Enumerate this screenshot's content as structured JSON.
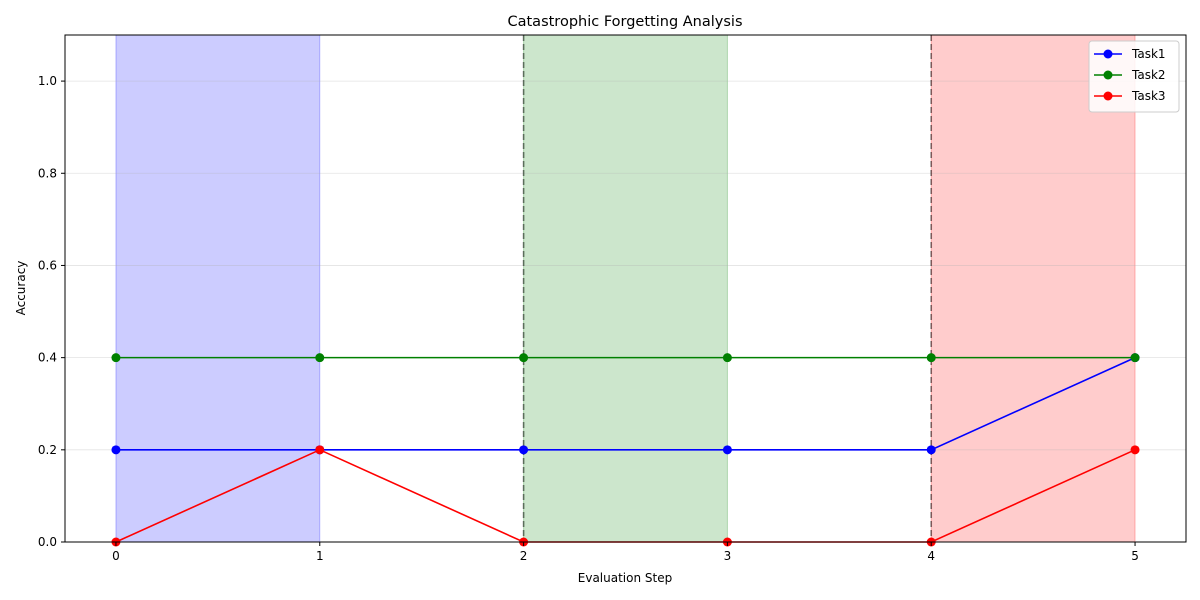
{
  "chart_data": {
    "type": "line",
    "title": "Catastrophic Forgetting Analysis",
    "xlabel": "Evaluation Step",
    "ylabel": "Accuracy",
    "x": [
      0,
      1,
      2,
      3,
      4,
      5
    ],
    "xlim": [
      -0.25,
      5.25
    ],
    "ylim": [
      0.0,
      1.1
    ],
    "x_ticks": [
      "0",
      "1",
      "2",
      "3",
      "4",
      "5"
    ],
    "y_ticks": [
      "0.0",
      "0.2",
      "0.4",
      "0.6",
      "0.8",
      "1.0"
    ],
    "y_tick_values": [
      0.0,
      0.2,
      0.4,
      0.6,
      0.8,
      1.0
    ],
    "grid": "horizontal",
    "legend_position": "top-right",
    "series": [
      {
        "name": "Task1",
        "color": "#0000ff",
        "values": [
          0.2,
          0.2,
          0.2,
          0.2,
          0.2,
          0.4
        ]
      },
      {
        "name": "Task2",
        "color": "#008000",
        "values": [
          0.4,
          0.4,
          0.4,
          0.4,
          0.4,
          0.4
        ]
      },
      {
        "name": "Task3",
        "color": "#ff0000",
        "values": [
          0.0,
          0.2,
          0.0,
          0.0,
          0.0,
          0.2
        ]
      }
    ],
    "shaded_regions": [
      {
        "x_start": 0,
        "x_end": 1,
        "color": "#0000ff"
      },
      {
        "x_start": 2,
        "x_end": 3,
        "color": "#008000"
      },
      {
        "x_start": 4,
        "x_end": 5,
        "color": "#ff0000"
      }
    ],
    "vertical_lines": [
      2,
      4
    ]
  }
}
